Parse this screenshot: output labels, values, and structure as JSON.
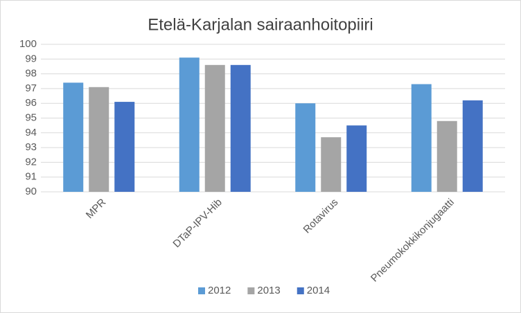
{
  "chart_data": {
    "type": "bar",
    "title": "Etelä-Karjalan sairaanhoitopiiri",
    "categories": [
      "MPR",
      "DTaP-IPV-Hib",
      "Rotavirus",
      "Pneumokokkikonjugaatti"
    ],
    "series": [
      {
        "name": "2012",
        "color": "#5b9bd5",
        "values": [
          97.4,
          99.1,
          96.0,
          97.3
        ]
      },
      {
        "name": "2013",
        "color": "#a5a5a5",
        "values": [
          97.1,
          98.6,
          93.7,
          94.8
        ]
      },
      {
        "name": "2014",
        "color": "#4472c4",
        "values": [
          96.1,
          98.6,
          94.5,
          96.2
        ]
      }
    ],
    "ylim": [
      90,
      100
    ],
    "yticks": [
      90,
      91,
      92,
      93,
      94,
      95,
      96,
      97,
      98,
      99,
      100
    ],
    "grid": true,
    "legend": "bottom"
  }
}
